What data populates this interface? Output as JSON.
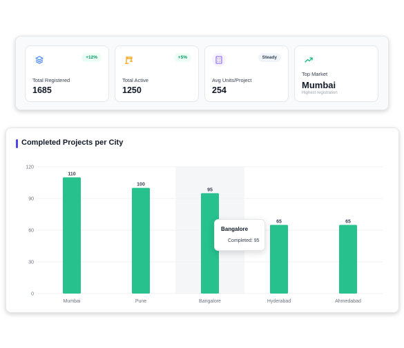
{
  "stats": [
    {
      "label": "Total Registered",
      "value": "1685",
      "badge": "+12%",
      "icon": "layers-icon"
    },
    {
      "label": "Total Active",
      "value": "1250",
      "badge": "+5%",
      "icon": "crane-icon"
    },
    {
      "label": "Avg Units/Project",
      "value": "254",
      "badge": "Steady",
      "icon": "building-icon"
    },
    {
      "label": "Top Market",
      "value": "Mumbai",
      "sub": "Highest registration",
      "icon": "trend-up-icon"
    }
  ],
  "colors": {
    "accent": "#4f46e5",
    "bar": "#26c18d",
    "badge_green_bg": "#ecfdf5",
    "badge_green_text": "#059669",
    "badge_gray_bg": "#f1f5f9",
    "badge_gray_text": "#334155",
    "layers_icon": "#3b82f6",
    "crane_icon": "#f59e0b",
    "building_icon": "#8b5cf6",
    "trend_icon": "#10b981"
  },
  "chart_data": {
    "type": "bar",
    "title": "Completed Projects per City",
    "categories": [
      "Mumbai",
      "Pune",
      "Bangalore",
      "Hyderabad",
      "Ahmedabad"
    ],
    "values": [
      110,
      100,
      95,
      65,
      65
    ],
    "yticks": [
      0,
      30,
      60,
      90,
      120
    ],
    "ylim": [
      0,
      120
    ],
    "grid": true,
    "highlighted_category": "Bangalore",
    "tooltip": {
      "title": "Bangalore",
      "text": "Completed: 95"
    }
  }
}
